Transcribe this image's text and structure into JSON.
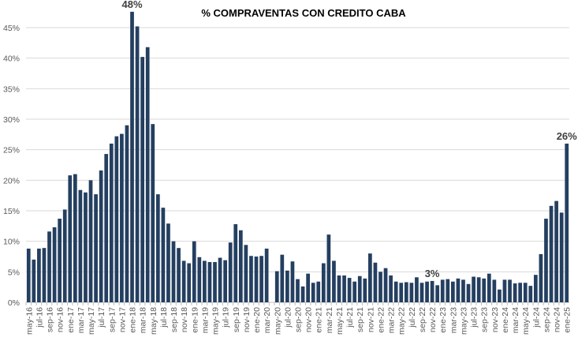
{
  "chart_data": {
    "type": "bar",
    "title": "% COMPRAVENTAS CON CREDITO CABA",
    "xlabel": "",
    "ylabel": "",
    "ylim": [
      0,
      48
    ],
    "yticks": [
      "0%",
      "5%",
      "10%",
      "15%",
      "20%",
      "25%",
      "30%",
      "35%",
      "40%",
      "45%"
    ],
    "ytick_values": [
      0,
      5,
      10,
      15,
      20,
      25,
      30,
      35,
      40,
      45
    ],
    "grid": true,
    "color": "#243f60",
    "categories": [
      "may-16",
      "jun-16",
      "jul-16",
      "ago-16",
      "sep-16",
      "oct-16",
      "nov-16",
      "dic-16",
      "ene-17",
      "feb-17",
      "mar-17",
      "abr-17",
      "may-17",
      "jun-17",
      "jul-17",
      "ago-17",
      "sep-17",
      "oct-17",
      "nov-17",
      "dic-17",
      "ene-18",
      "feb-18",
      "mar-18",
      "abr-18",
      "may-18",
      "jun-18",
      "jul-18",
      "ago-18",
      "sep-18",
      "oct-18",
      "nov-18",
      "dic-18",
      "ene-19",
      "feb-19",
      "mar-19",
      "abr-19",
      "may-19",
      "jun-19",
      "jul-19",
      "ago-19",
      "sep-19",
      "oct-19",
      "nov-19",
      "dic-19",
      "ene-20",
      "feb-20",
      "mar-20",
      "abr-20",
      "may-20",
      "jun-20",
      "jul-20",
      "ago-20",
      "sep-20",
      "oct-20",
      "nov-20",
      "dic-20",
      "ene-21",
      "feb-21",
      "mar-21",
      "abr-21",
      "may-21",
      "jun-21",
      "jul-21",
      "ago-21",
      "sep-21",
      "oct-21",
      "nov-21",
      "dic-21",
      "ene-22",
      "feb-22",
      "mar-22",
      "abr-22",
      "may-22",
      "jun-22",
      "jul-22",
      "ago-22",
      "sep-22",
      "oct-22",
      "nov-22",
      "dic-22",
      "ene-23",
      "feb-23",
      "mar-23",
      "abr-23",
      "may-23",
      "jun-23",
      "jul-23",
      "ago-23",
      "sep-23",
      "oct-23",
      "nov-23",
      "dic-23",
      "ene-24",
      "feb-24",
      "mar-24",
      "abr-24",
      "may-24",
      "jun-24",
      "jul-24",
      "ago-24",
      "sep-24",
      "oct-24",
      "nov-24",
      "dic-24",
      "ene-25"
    ],
    "values": [
      8.8,
      7.0,
      8.8,
      8.9,
      11.6,
      12.3,
      13.7,
      15.2,
      20.8,
      21.0,
      18.4,
      18.0,
      20.0,
      17.7,
      21.6,
      24.3,
      26.0,
      27.2,
      27.6,
      29.0,
      47.6,
      45.2,
      40.2,
      41.8,
      29.2,
      17.7,
      15.5,
      12.9,
      10.0,
      8.9,
      6.8,
      6.4,
      10.0,
      7.4,
      6.8,
      6.6,
      6.6,
      7.3,
      6.9,
      9.8,
      12.8,
      11.8,
      9.4,
      7.6,
      7.5,
      7.6,
      8.8,
      null,
      5.1,
      7.8,
      5.2,
      6.7,
      3.8,
      2.6,
      4.7,
      3.2,
      3.4,
      6.4,
      11.1,
      6.8,
      4.4,
      4.4,
      4.0,
      3.4,
      4.3,
      3.9,
      8.0,
      6.5,
      5.0,
      5.6,
      4.4,
      3.4,
      3.2,
      3.3,
      3.2,
      4.1,
      3.2,
      3.4,
      3.5,
      2.8,
      3.7,
      3.8,
      3.4,
      3.9,
      3.7,
      3.0,
      4.2,
      4.1,
      3.9,
      4.7,
      3.7,
      2.1,
      3.7,
      3.7,
      3.1,
      3.2,
      3.2,
      2.7,
      4.5,
      7.9,
      13.7,
      15.8,
      16.6,
      14.7,
      26.0
    ],
    "data_labels": [
      {
        "category": "ene-18",
        "text": "48%"
      },
      {
        "category": "nov-22",
        "text": "3%"
      },
      {
        "category": "ene-25",
        "text": "26%"
      }
    ]
  }
}
